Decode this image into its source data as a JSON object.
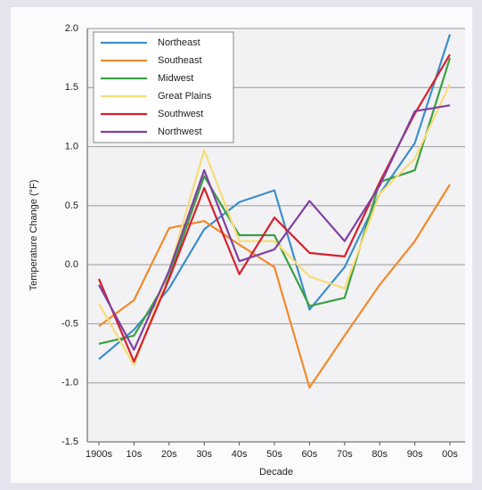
{
  "chart_data": {
    "type": "line",
    "xlabel": "Decade",
    "ylabel": "Temperature Change (°F)",
    "categories": [
      "1900s",
      "10s",
      "20s",
      "30s",
      "40s",
      "50s",
      "60s",
      "70s",
      "80s",
      "90s",
      "00s"
    ],
    "ylim": [
      -1.5,
      2.0
    ],
    "yticks": [
      {
        "value": -1.5,
        "label": "-1.5"
      },
      {
        "value": -1.0,
        "label": "-1.0"
      },
      {
        "value": -0.5,
        "label": "-0.5"
      },
      {
        "value": 0,
        "label": "0.0"
      },
      {
        "value": 0.5,
        "label": "0.5"
      },
      {
        "value": 1.0,
        "label": "1.0"
      },
      {
        "value": 1.5,
        "label": "1.5"
      },
      {
        "value": 2.0,
        "label": "2.0"
      }
    ],
    "grid": true,
    "legend": "upper left",
    "series": [
      {
        "name": "Northeast",
        "color": "#3d8fca",
        "values": [
          -0.8,
          -0.55,
          -0.2,
          0.3,
          0.53,
          0.63,
          -0.38,
          -0.02,
          0.6,
          1.03,
          1.95
        ]
      },
      {
        "name": "Southeast",
        "color": "#f08a2c",
        "values": [
          -0.52,
          -0.3,
          0.31,
          0.37,
          0.17,
          -0.02,
          -1.04,
          -0.6,
          -0.17,
          0.2,
          0.68
        ]
      },
      {
        "name": "Midwest",
        "color": "#3ba044",
        "values": [
          -0.67,
          -0.6,
          -0.1,
          0.75,
          0.25,
          0.25,
          -0.35,
          -0.28,
          0.7,
          0.8,
          1.75
        ]
      },
      {
        "name": "Great Plains",
        "color": "#f8dc78",
        "values": [
          -0.33,
          -0.85,
          -0.05,
          0.97,
          0.2,
          0.2,
          -0.1,
          -0.2,
          0.6,
          0.9,
          1.53
        ]
      },
      {
        "name": "Southwest",
        "color": "#d6202c",
        "values": [
          -0.12,
          -0.82,
          -0.12,
          0.65,
          -0.08,
          0.4,
          0.1,
          0.07,
          0.7,
          1.28,
          1.78
        ]
      },
      {
        "name": "Northwest",
        "color": "#8040a2",
        "values": [
          -0.17,
          -0.72,
          -0.05,
          0.8,
          0.03,
          0.13,
          0.54,
          0.2,
          0.67,
          1.3,
          1.35
        ]
      }
    ]
  }
}
